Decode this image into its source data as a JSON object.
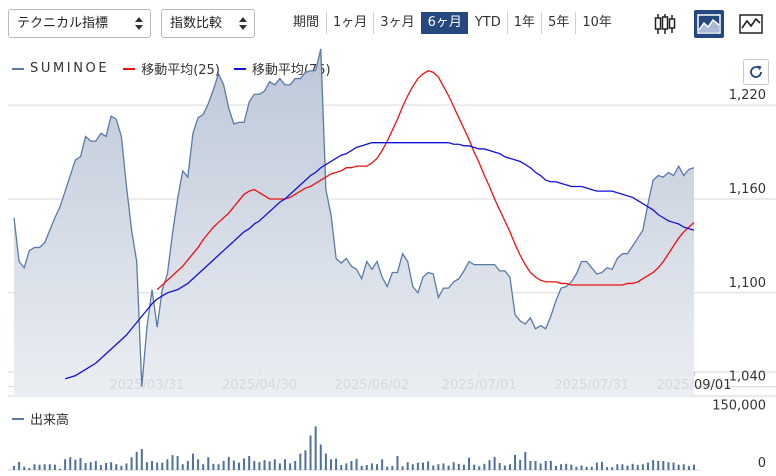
{
  "toolbar": {
    "indicator_select": "テクニカル指標",
    "compare_select": "指数比較",
    "period_label": "期間",
    "periods": [
      "1ヶ月",
      "3ヶ月",
      "6ヶ月",
      "YTD",
      "1年",
      "5年",
      "10年"
    ],
    "active_period": "6ヶ月",
    "chart_types": [
      "candlestick-icon",
      "area-chart-icon",
      "line-chart-icon"
    ],
    "active_chart_type": "area-chart-icon"
  },
  "legend": {
    "ticker": "SUMINOE",
    "ma25": "移動平均(25)",
    "ma75": "移動平均(75)"
  },
  "volume_legend": "出来高",
  "colors": {
    "price_line": "#5a7aa8",
    "price_fill_top": "#b9c4d6",
    "ma25": "#ee1111",
    "ma75": "#1111dd",
    "volume": "#4e6f9f",
    "accent": "#25487f"
  },
  "chart_data": {
    "type": "area",
    "x_ticks": [
      "2025/03/31",
      "2025/04/30",
      "2025/06/02",
      "2025/07/01",
      "2025/07/31",
      "2025/09/01"
    ],
    "y_ticks": [
      1040,
      1100,
      1160,
      1220
    ],
    "y_tick_labels": [
      "1,040",
      "1,100",
      "1,160",
      "1,220"
    ],
    "ylim": [
      1034,
      1254
    ],
    "volume_ticks": [
      0,
      150000
    ],
    "volume_tick_labels": [
      "0",
      "150,000"
    ],
    "volume_ylim": [
      0,
      180000
    ],
    "n_points": 134,
    "series": [
      {
        "name": "SUMINOE",
        "kind": "area",
        "values": [
          1148,
          1120,
          1116,
          1127,
          1129,
          1129,
          1132,
          1140,
          1148,
          1155,
          1165,
          1175,
          1185,
          1187,
          1200,
          1197,
          1197,
          1202,
          1200,
          1213,
          1211,
          1200,
          1168,
          1140,
          1120,
          1040,
          1078,
          1102,
          1078,
          1102,
          1112,
          1138,
          1160,
          1178,
          1174,
          1202,
          1212,
          1214,
          1221,
          1230,
          1240,
          1233,
          1218,
          1208,
          1209,
          1209,
          1222,
          1227,
          1227,
          1229,
          1235,
          1233,
          1237,
          1233,
          1233,
          1237,
          1237,
          1241,
          1242,
          1242,
          1256,
          1166,
          1150,
          1122,
          1119,
          1122,
          1117,
          1115,
          1109,
          1120,
          1115,
          1120,
          1110,
          1104,
          1113,
          1113,
          1125,
          1120,
          1104,
          1100,
          1110,
          1113,
          1112,
          1097,
          1103,
          1103,
          1107,
          1109,
          1114,
          1120,
          1118,
          1118,
          1118,
          1118,
          1118,
          1114,
          1114,
          1110,
          1086,
          1082,
          1080,
          1084,
          1077,
          1079,
          1077,
          1085,
          1095,
          1103,
          1104,
          1107,
          1112,
          1120,
          1120,
          1116,
          1112,
          1113,
          1116,
          1115,
          1122,
          1125,
          1125,
          1130,
          1135,
          1140,
          1157,
          1172,
          1175,
          1174,
          1177,
          1175,
          1181,
          1175,
          1179,
          1180
        ]
      },
      {
        "name": "移動平均(25)",
        "kind": "line",
        "values": [
          1102,
          1105,
          1108,
          1111,
          1114,
          1117,
          1121,
          1125,
          1129,
          1134,
          1138,
          1142,
          1145,
          1148,
          1151,
          1155,
          1159,
          1163,
          1165,
          1166,
          1164,
          1162,
          1160,
          1160,
          1160,
          1160,
          1161,
          1163,
          1165,
          1167,
          1168,
          1170,
          1172,
          1174,
          1176,
          1177,
          1178,
          1180,
          1180,
          1181,
          1181,
          1181,
          1183,
          1186,
          1191,
          1197,
          1204,
          1211,
          1219,
          1226,
          1232,
          1237,
          1240,
          1242,
          1241,
          1238,
          1232,
          1226,
          1219,
          1212,
          1205,
          1198,
          1190,
          1183,
          1175,
          1168,
          1160,
          1153,
          1146,
          1139,
          1131,
          1124,
          1118,
          1113,
          1110,
          1108,
          1107,
          1107,
          1107,
          1106,
          1106,
          1105,
          1105,
          1105,
          1105,
          1105,
          1105,
          1105,
          1105,
          1105,
          1105,
          1105,
          1106,
          1106,
          1107,
          1109,
          1111,
          1113,
          1116,
          1120,
          1125,
          1130,
          1135,
          1139,
          1142,
          1145
        ]
      },
      {
        "name": "移動平均(75)",
        "kind": "line",
        "values": [
          1045,
          1046,
          1047,
          1049,
          1051,
          1053,
          1055,
          1058,
          1061,
          1064,
          1067,
          1070,
          1073,
          1077,
          1081,
          1085,
          1089,
          1093,
          1096,
          1098,
          1100,
          1101,
          1102,
          1104,
          1106,
          1109,
          1112,
          1115,
          1118,
          1121,
          1124,
          1127,
          1130,
          1133,
          1136,
          1139,
          1141,
          1144,
          1146,
          1149,
          1152,
          1155,
          1158,
          1160,
          1163,
          1166,
          1169,
          1172,
          1175,
          1177,
          1180,
          1182,
          1184,
          1186,
          1188,
          1189,
          1191,
          1193,
          1194,
          1195,
          1196,
          1196,
          1196,
          1196,
          1196,
          1196,
          1196,
          1196,
          1196,
          1196,
          1196,
          1196,
          1196,
          1196,
          1196,
          1196,
          1195,
          1195,
          1194,
          1194,
          1193,
          1192,
          1192,
          1191,
          1190,
          1189,
          1187,
          1186,
          1185,
          1184,
          1182,
          1180,
          1177,
          1175,
          1172,
          1171,
          1171,
          1170,
          1169,
          1168,
          1168,
          1168,
          1167,
          1166,
          1165,
          1165,
          1165,
          1165,
          1164,
          1163,
          1162,
          1161,
          1159,
          1157,
          1155,
          1153,
          1150,
          1148,
          1146,
          1145,
          1144,
          1142,
          1141,
          1140
        ]
      },
      {
        "name": "出来高",
        "kind": "volume",
        "values": [
          10000,
          20000,
          8000,
          5000,
          14000,
          13000,
          14000,
          14000,
          13000,
          3000,
          26000,
          31000,
          25000,
          29000,
          17000,
          19000,
          22000,
          12000,
          17000,
          19000,
          14000,
          10000,
          16000,
          31000,
          44000,
          51000,
          19000,
          22000,
          18000,
          18000,
          26000,
          36000,
          34000,
          14000,
          22000,
          40000,
          26000,
          14000,
          31000,
          15000,
          14000,
          22000,
          32000,
          23000,
          18000,
          28000,
          34000,
          22000,
          19000,
          24000,
          21000,
          26000,
          16000,
          26000,
          16000,
          22000,
          40000,
          48000,
          84000,
          106000,
          62000,
          40000,
          26000,
          28000,
          12000,
          16000,
          22000,
          27000,
          10000,
          12000,
          16000,
          14000,
          26000,
          8000,
          10000,
          34000,
          9000,
          19000,
          14000,
          18000,
          18000,
          21000,
          11000,
          14000,
          16000,
          11000,
          19000,
          15000,
          13000,
          30000,
          13000,
          9000,
          15000,
          24000,
          32000,
          17000,
          11000,
          14000,
          37000,
          25000,
          44000,
          22000,
          22000,
          16000,
          22000,
          22000,
          10000,
          14000,
          15000,
          13000,
          8000,
          11000,
          8000,
          8000,
          18000,
          20000,
          7000,
          7000,
          14000,
          14000,
          11000,
          15000,
          12000,
          14000,
          18000,
          24000,
          22000,
          22000,
          19000,
          18000,
          13000,
          14000,
          10000,
          13000
        ]
      }
    ]
  }
}
